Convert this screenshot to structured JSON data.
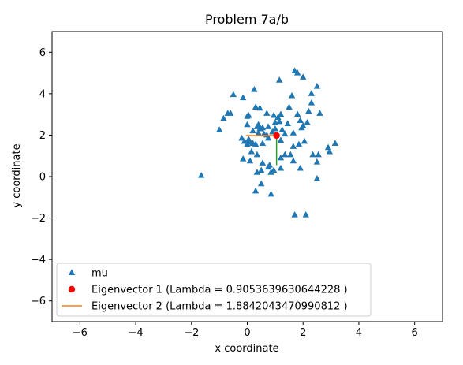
{
  "chart_data": {
    "type": "scatter",
    "title": "Problem 7a/b",
    "xlabel": "x coordinate",
    "ylabel": "y coordinate",
    "xlim": [
      -7,
      7
    ],
    "ylim": [
      -7,
      7
    ],
    "xticks": [
      -6,
      -4,
      -2,
      0,
      2,
      4,
      6
    ],
    "yticks": [
      -6,
      -4,
      -2,
      0,
      2,
      4,
      6
    ],
    "tick_labels": {
      "x": [
        "−6",
        "−4",
        "−2",
        "0",
        "2",
        "4",
        "6"
      ],
      "y": [
        "−6",
        "−4",
        "−2",
        "0",
        "2",
        "4",
        "6"
      ]
    },
    "grid": false,
    "legend_position": "lower-left",
    "legend": [
      {
        "label": "mu",
        "marker": "triangle",
        "color": "#1f77b4"
      },
      {
        "label": "Eigenvector 1 (Lambda = 0.9053639630644228 )",
        "marker": "circle",
        "color": "#ff0000"
      },
      {
        "label": "Eigenvector 2 (Lambda = 1.8842043470990812 )",
        "marker": "line",
        "color": "#ff7f0e"
      }
    ],
    "series": [
      {
        "name": "mu",
        "marker": "triangle",
        "color": "#1f77b4",
        "points": [
          [
            1.7,
            5.1
          ],
          [
            1.8,
            5.0
          ],
          [
            1.15,
            4.65
          ],
          [
            2.0,
            4.8
          ],
          [
            0.25,
            4.2
          ],
          [
            2.5,
            4.35
          ],
          [
            -0.5,
            3.95
          ],
          [
            -0.15,
            3.8
          ],
          [
            1.6,
            3.9
          ],
          [
            2.3,
            4.0
          ],
          [
            -0.7,
            3.05
          ],
          [
            -0.6,
            3.05
          ],
          [
            -0.85,
            2.8
          ],
          [
            -1.0,
            2.25
          ],
          [
            0.0,
            2.9
          ],
          [
            0.05,
            2.95
          ],
          [
            0.3,
            3.35
          ],
          [
            0.45,
            3.3
          ],
          [
            0.7,
            3.05
          ],
          [
            0.95,
            2.95
          ],
          [
            1.2,
            3.0
          ],
          [
            1.1,
            2.85
          ],
          [
            1.5,
            3.35
          ],
          [
            1.8,
            3.0
          ],
          [
            2.2,
            3.15
          ],
          [
            2.3,
            3.55
          ],
          [
            2.6,
            3.05
          ],
          [
            0.0,
            2.5
          ],
          [
            0.2,
            2.2
          ],
          [
            0.4,
            2.5
          ],
          [
            0.55,
            2.35
          ],
          [
            0.75,
            2.4
          ],
          [
            1.0,
            2.6
          ],
          [
            1.25,
            2.25
          ],
          [
            1.45,
            2.55
          ],
          [
            1.9,
            2.7
          ],
          [
            2.0,
            2.45
          ],
          [
            1.95,
            2.35
          ],
          [
            2.15,
            2.6
          ],
          [
            0.35,
            2.4
          ],
          [
            0.45,
            2.3
          ],
          [
            1.15,
            2.65
          ],
          [
            1.0,
            2.3
          ],
          [
            0.9,
            2.15
          ],
          [
            1.35,
            2.05
          ],
          [
            1.65,
            2.1
          ],
          [
            -0.2,
            1.85
          ],
          [
            0.05,
            1.8
          ],
          [
            -0.1,
            1.7
          ],
          [
            0.1,
            1.65
          ],
          [
            0.2,
            1.6
          ],
          [
            0.0,
            1.55
          ],
          [
            0.3,
            1.55
          ],
          [
            0.55,
            1.6
          ],
          [
            0.75,
            1.85
          ],
          [
            1.2,
            1.75
          ],
          [
            0.7,
            2.0
          ],
          [
            0.4,
            2.1
          ],
          [
            0.6,
            2.05
          ],
          [
            0.15,
            1.2
          ],
          [
            0.35,
            1.05
          ],
          [
            -0.15,
            0.85
          ],
          [
            0.1,
            0.75
          ],
          [
            0.55,
            0.65
          ],
          [
            0.8,
            0.55
          ],
          [
            0.75,
            0.45
          ],
          [
            0.95,
            0.3
          ],
          [
            0.85,
            0.2
          ],
          [
            1.2,
            0.9
          ],
          [
            1.35,
            1.05
          ],
          [
            1.55,
            1.05
          ],
          [
            1.65,
            1.45
          ],
          [
            1.85,
            1.55
          ],
          [
            2.05,
            1.7
          ],
          [
            2.35,
            1.05
          ],
          [
            2.55,
            1.05
          ],
          [
            2.95,
            1.2
          ],
          [
            2.9,
            1.4
          ],
          [
            3.15,
            1.6
          ],
          [
            2.5,
            0.7
          ],
          [
            1.65,
            0.75
          ],
          [
            1.2,
            0.4
          ],
          [
            1.9,
            0.4
          ],
          [
            0.35,
            0.2
          ],
          [
            0.5,
            0.3
          ],
          [
            0.5,
            -0.35
          ],
          [
            0.3,
            -0.7
          ],
          [
            0.85,
            -0.85
          ],
          [
            1.7,
            -1.85
          ],
          [
            2.1,
            -1.85
          ],
          [
            2.5,
            -0.1
          ],
          [
            -1.65,
            0.05
          ]
        ]
      },
      {
        "name": "Eigenvector 1 (Lambda = 0.9053639630644228 )",
        "marker": "circle",
        "color": "#ff0000",
        "points": [
          [
            1.05,
            1.98
          ]
        ]
      },
      {
        "name": "Eigenvector 2 (Lambda = 1.8842043470990812 )",
        "marker": "line",
        "color": "#ff7f0e",
        "points": [
          [
            -0.05,
            1.98
          ],
          [
            1.05,
            1.98
          ]
        ]
      },
      {
        "marker": "line",
        "color": "#2ca02c",
        "points": [
          [
            1.05,
            1.98
          ],
          [
            1.05,
            0.55
          ]
        ]
      }
    ]
  }
}
